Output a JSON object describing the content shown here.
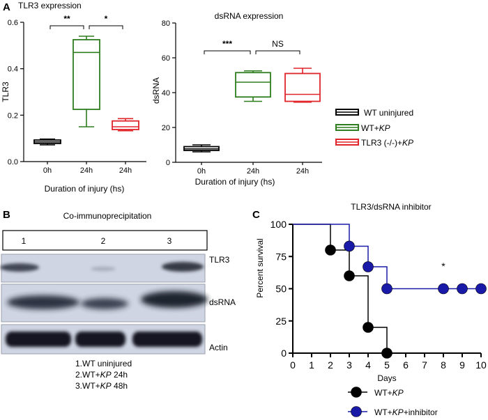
{
  "panels": {
    "a": {
      "letter": "A"
    },
    "b": {
      "letter": "B"
    },
    "c": {
      "letter": "C"
    }
  },
  "chart_data": [
    {
      "panel": "A-left",
      "type": "box",
      "title": "TLR3 expression",
      "xlabel": "Duration of injury (hs)",
      "ylabel": "TLR3",
      "categories": [
        "0h",
        "24h",
        "24h"
      ],
      "ylim": [
        0,
        0.6
      ],
      "yticks": [
        "0.0",
        "0.2",
        "0.4",
        "0.6"
      ],
      "series": [
        {
          "group": "WT uninjured",
          "color": "#000000",
          "min": 0.072,
          "q1": 0.078,
          "median": 0.085,
          "q3": 0.093,
          "max": 0.097
        },
        {
          "group": "WT+KP",
          "color": "#2e7d1e",
          "min": 0.15,
          "q1": 0.225,
          "median": 0.47,
          "q3": 0.525,
          "max": 0.54
        },
        {
          "group": "TLR3 (-/-)+KP",
          "color": "#e0242a",
          "min": 0.133,
          "q1": 0.138,
          "median": 0.15,
          "q3": 0.175,
          "max": 0.185
        }
      ],
      "significance": [
        {
          "from": 0,
          "to": 1,
          "label": "**"
        },
        {
          "from": 1,
          "to": 2,
          "label": "*"
        }
      ]
    },
    {
      "panel": "A-right",
      "type": "box",
      "title": "dsRNA expression",
      "xlabel": "Duration of injury (hs)",
      "ylabel": "dsRNA",
      "categories": [
        "0h",
        "24h",
        "24h"
      ],
      "ylim": [
        0,
        80
      ],
      "yticks": [
        "0",
        "20",
        "40",
        "60",
        "80"
      ],
      "series": [
        {
          "group": "WT uninjured",
          "color": "#000000",
          "min": 6,
          "q1": 6.8,
          "median": 7.7,
          "q3": 9,
          "max": 10
        },
        {
          "group": "WT+KP",
          "color": "#2e7d1e",
          "min": 35,
          "q1": 37.5,
          "median": 46,
          "q3": 51.5,
          "max": 52.5
        },
        {
          "group": "TLR3 (-/-)+KP",
          "color": "#e0242a",
          "min": 34.5,
          "q1": 35,
          "median": 39,
          "q3": 51,
          "max": 54
        }
      ],
      "significance": [
        {
          "from": 0,
          "to": 1,
          "label": "***"
        },
        {
          "from": 1,
          "to": 2,
          "label": "NS"
        }
      ]
    },
    {
      "panel": "C",
      "type": "line",
      "subtype": "survival-step",
      "title": "TLR3/dsRNA inhibitor",
      "xlabel": "Days",
      "ylabel": "Percent survival",
      "xlim": [
        0,
        10
      ],
      "ylim": [
        0,
        100
      ],
      "xticks": [
        "0",
        "1",
        "2",
        "3",
        "4",
        "5",
        "6",
        "7",
        "8",
        "9",
        "10"
      ],
      "yticks": [
        "0",
        "25",
        "50",
        "75",
        "100"
      ],
      "annotation": "*",
      "series": [
        {
          "name": "WT+KP",
          "color": "#000000",
          "steps": [
            [
              0,
              100
            ],
            [
              2,
              100
            ],
            [
              2,
              80
            ],
            [
              3,
              80
            ],
            [
              3,
              60
            ],
            [
              4,
              60
            ],
            [
              4,
              20
            ],
            [
              5,
              20
            ],
            [
              5,
              0
            ]
          ],
          "markers": [
            [
              2,
              80
            ],
            [
              3,
              60
            ],
            [
              4,
              20
            ],
            [
              5,
              0
            ]
          ]
        },
        {
          "name": "WT+KP+inhibitor",
          "color": "#1a1aa8",
          "steps": [
            [
              0,
              100
            ],
            [
              3,
              100
            ],
            [
              3,
              83
            ],
            [
              4,
              83
            ],
            [
              4,
              67
            ],
            [
              5,
              67
            ],
            [
              5,
              50
            ],
            [
              10,
              50
            ]
          ],
          "markers": [
            [
              3,
              83
            ],
            [
              4,
              67
            ],
            [
              5,
              50
            ],
            [
              8,
              50
            ],
            [
              9,
              50
            ],
            [
              10,
              50
            ]
          ]
        }
      ]
    }
  ],
  "legend_a": [
    {
      "prefix": "WT uninjured",
      "italic": "",
      "color": "#000000"
    },
    {
      "prefix": "WT+",
      "italic": "KP",
      "color": "#2e7d1e"
    },
    {
      "prefix": "TLR3 (-/-)+",
      "italic": "KP",
      "color": "#e0242a"
    }
  ],
  "legend_c": [
    {
      "prefix": "WT+",
      "italic": "KP",
      "suffix": "",
      "color": "#000000"
    },
    {
      "prefix": "WT+",
      "italic": "KP",
      "suffix": "+inhibitor",
      "color": "#1a1aa8"
    }
  ],
  "blot": {
    "title": "Co-immunoprecipitation",
    "lanes": [
      "1",
      "2",
      "3"
    ],
    "rows": [
      {
        "label": "TLR3"
      },
      {
        "label": "dsRNA"
      },
      {
        "label": "Actin"
      }
    ],
    "key": [
      {
        "prefix": "1.WT uninjured",
        "italic": "",
        "suffix": ""
      },
      {
        "prefix": "2.WT+",
        "italic": "KP",
        "suffix": " 24h"
      },
      {
        "prefix": "3.WT+",
        "italic": "KP",
        "suffix": " 48h"
      }
    ]
  }
}
